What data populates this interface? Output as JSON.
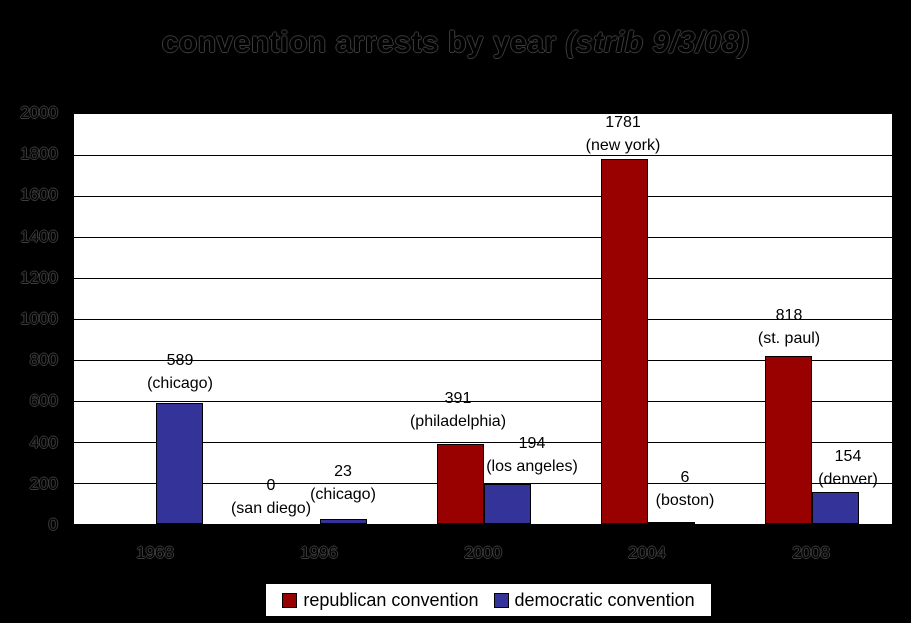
{
  "title": {
    "text": "convention arrests by year",
    "suffix": "(strib 9/3/08)"
  },
  "colors": {
    "page_background": "#000000",
    "plot_background": "#ffffff",
    "republican": "#990000",
    "democratic": "#333399",
    "gridline": "#000000"
  },
  "chart_data": {
    "type": "bar",
    "title": "convention arrests by year (strib 9/3/08)",
    "categories": [
      "1968",
      "1996",
      "2000",
      "2004",
      "2008"
    ],
    "series": [
      {
        "name": "republican convention",
        "color": "#990000",
        "values": [
          null,
          0,
          391,
          1781,
          818
        ],
        "cities": [
          null,
          "san diego",
          "philadelphia",
          "new york",
          "st. paul"
        ]
      },
      {
        "name": "democratic convention",
        "color": "#333399",
        "values": [
          589,
          23,
          194,
          6,
          154
        ],
        "cities": [
          "chicago",
          "chicago",
          "los angeles",
          "boston",
          "denver"
        ]
      }
    ],
    "xlabel": "",
    "ylabel": "",
    "ylim": [
      0,
      2000
    ],
    "ytick_interval": 200,
    "yticks": [
      2000,
      1800,
      1600,
      1400,
      1200,
      1000,
      800,
      600,
      400,
      200,
      0
    ],
    "grid": true,
    "legend_position": "bottom"
  },
  "legend": {
    "items": [
      {
        "label": "republican convention",
        "color": "#990000"
      },
      {
        "label": "democratic convention",
        "color": "#333399"
      }
    ]
  }
}
